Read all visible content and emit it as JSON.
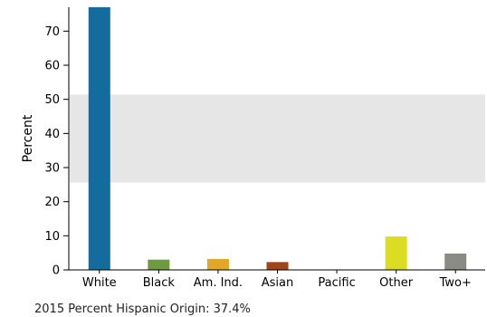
{
  "chart_data": {
    "type": "bar",
    "categories": [
      "White",
      "Black",
      "Am. Ind.",
      "Asian",
      "Pacific",
      "Other",
      "Two+"
    ],
    "values": [
      77.0,
      3.0,
      3.2,
      2.3,
      0.1,
      9.8,
      4.8
    ],
    "colors": [
      "#136c9c",
      "#6f9a3f",
      "#e0a729",
      "#a0461b",
      "#4f7fa0",
      "#dadd22",
      "#8b8b86"
    ],
    "ylabel": "Percent",
    "ylim": [
      0,
      77
    ],
    "yticks": [
      0,
      10,
      20,
      30,
      40,
      50,
      60,
      70
    ],
    "shaded_band": [
      25.6,
      51.4
    ],
    "band_color": "#e6e6e6",
    "footnote": "2015 Percent Hispanic Origin: 37.4%"
  }
}
